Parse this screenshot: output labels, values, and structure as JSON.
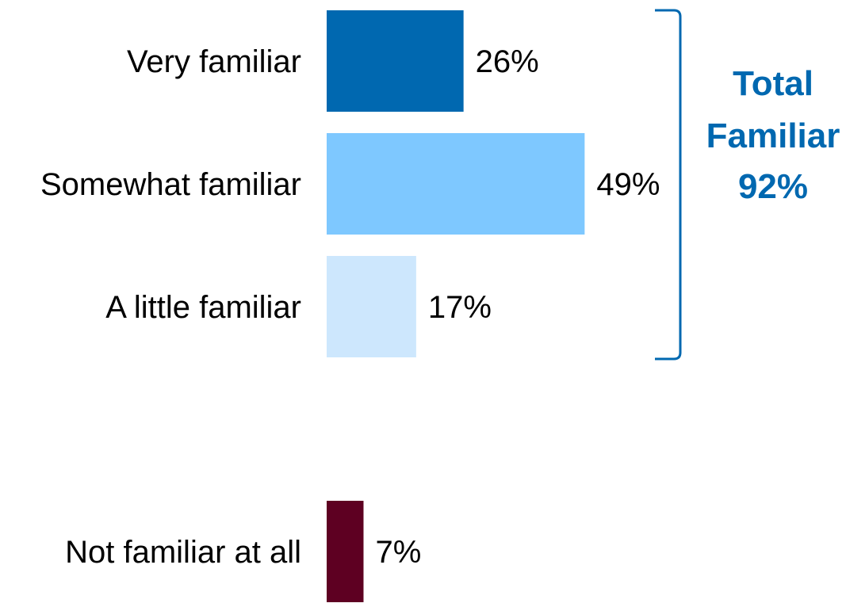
{
  "chart_data": {
    "type": "bar",
    "orientation": "horizontal",
    "categories": [
      "Very familiar",
      "Somewhat familiar",
      "A little familiar",
      "Not familiar at all"
    ],
    "values": [
      26,
      49,
      17,
      7
    ],
    "value_labels": [
      "26%",
      "49%",
      "17%",
      "7%"
    ],
    "bar_colors": [
      "#0068B0",
      "#7EC8FF",
      "#CDE7FD",
      "#5E0022"
    ],
    "xlim": [
      0,
      100
    ],
    "grid": false,
    "legend": "none",
    "annotation": {
      "lines": [
        "Total",
        "Familiar",
        "92%"
      ],
      "bracket_covers": [
        "Very familiar",
        "Somewhat familiar",
        "A little familiar"
      ],
      "color": "#0068B0"
    }
  }
}
